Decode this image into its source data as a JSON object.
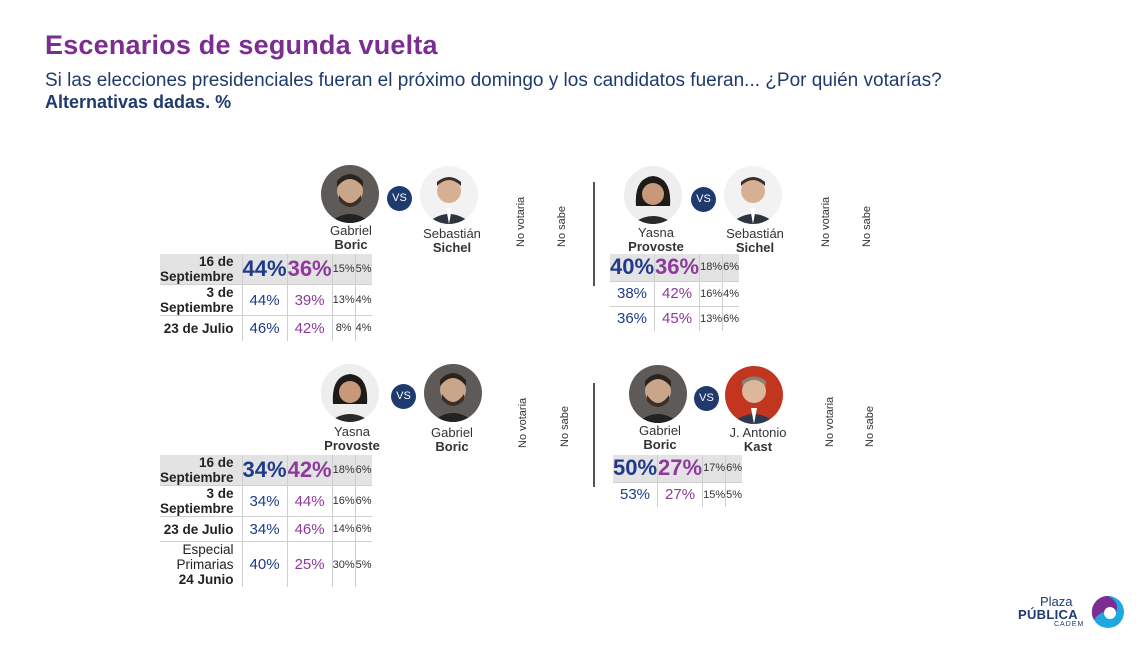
{
  "header": {
    "title": "Escenarios de segunda vuelta",
    "subtitle": "Si las elecciones presidenciales fueran el próximo domingo y los candidatos fueran... ¿Por quién votarías?",
    "subtitle2": "Alternativas dadas. %"
  },
  "vs_label": "VS",
  "col_no_votaria": "No votaria",
  "col_no_sabe": "No sabe",
  "logo": {
    "plaza": "Plaza",
    "publica": "PÚBLICA",
    "cadem": "CADEM"
  },
  "chart_data": [
    {
      "type": "table",
      "candidates": [
        {
          "first": "Gabriel",
          "last": "Boric"
        },
        {
          "first": "Sebastián",
          "last": "Sichel"
        }
      ],
      "columns": [
        "Gabriel Boric",
        "Sebastián Sichel",
        "No votaria",
        "No sabe"
      ],
      "rows": [
        {
          "label": "16 de Septiembre",
          "values": [
            "44%",
            "36%",
            "15%",
            "5%"
          ]
        },
        {
          "label": "3 de Septiembre",
          "values": [
            "44%",
            "39%",
            "13%",
            "4%"
          ]
        },
        {
          "label": "23 de Julio",
          "values": [
            "46%",
            "42%",
            "8%",
            "4%"
          ]
        }
      ]
    },
    {
      "type": "table",
      "candidates": [
        {
          "first": "Yasna",
          "last": "Provoste"
        },
        {
          "first": "Sebastián",
          "last": "Sichel"
        }
      ],
      "columns": [
        "Yasna Provoste",
        "Sebastián Sichel",
        "No votaria",
        "No sabe"
      ],
      "rows": [
        {
          "label": "16 de Septiembre",
          "values": [
            "40%",
            "36%",
            "18%",
            "6%"
          ]
        },
        {
          "label": "3 de Septiembre",
          "values": [
            "38%",
            "42%",
            "16%",
            "4%"
          ]
        },
        {
          "label": "23 de Julio",
          "values": [
            "36%",
            "45%",
            "13%",
            "6%"
          ]
        }
      ]
    },
    {
      "type": "table",
      "candidates": [
        {
          "first": "Yasna",
          "last": "Provoste"
        },
        {
          "first": "Gabriel",
          "last": "Boric"
        }
      ],
      "columns": [
        "Yasna Provoste",
        "Gabriel Boric",
        "No votaria",
        "No sabe"
      ],
      "rows": [
        {
          "label": "16 de Septiembre",
          "values": [
            "34%",
            "42%",
            "18%",
            "6%"
          ]
        },
        {
          "label": "3 de Septiembre",
          "values": [
            "34%",
            "44%",
            "16%",
            "6%"
          ]
        },
        {
          "label": "23 de Julio",
          "values": [
            "34%",
            "46%",
            "14%",
            "6%"
          ]
        },
        {
          "label_line1": "Especial Primarias",
          "label_line2": "24 Junio",
          "values": [
            "40%",
            "25%",
            "30%",
            "5%"
          ]
        }
      ]
    },
    {
      "type": "table",
      "candidates": [
        {
          "first": "Gabriel",
          "last": "Boric"
        },
        {
          "first": "J. Antonio",
          "last": "Kast"
        }
      ],
      "columns": [
        "Gabriel Boric",
        "J. Antonio Kast",
        "No votaria",
        "No sabe"
      ],
      "rows": [
        {
          "label": "16 de Septiembre",
          "values": [
            "50%",
            "27%",
            "17%",
            "6%"
          ]
        },
        {
          "label": "3 de Septiembre",
          "values": [
            "53%",
            "27%",
            "15%",
            "5%"
          ]
        }
      ]
    }
  ]
}
